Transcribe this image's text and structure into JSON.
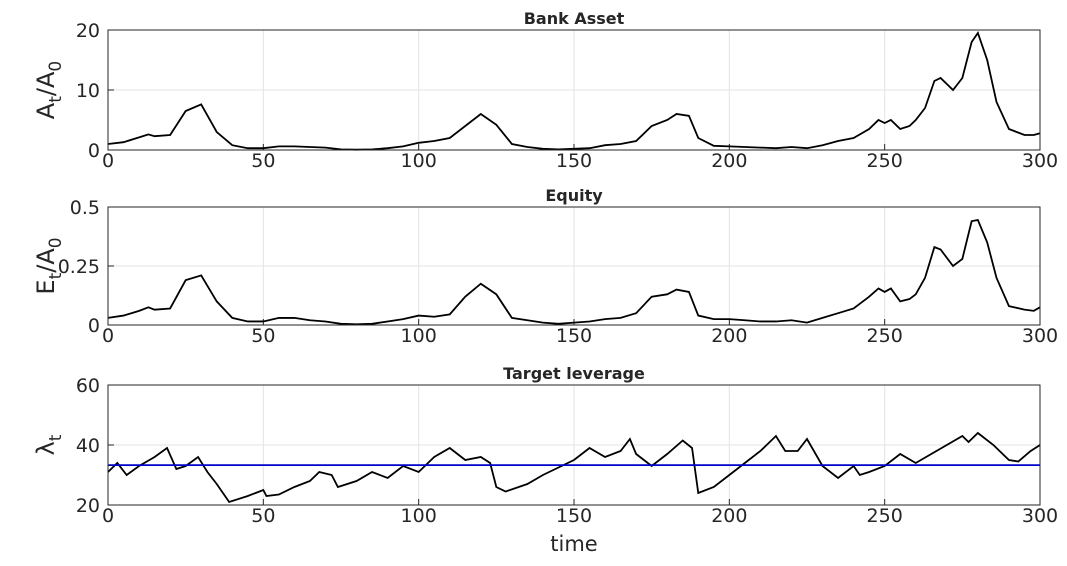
{
  "chart_data": [
    {
      "type": "line",
      "title": "Bank Asset",
      "ylabel": [
        "A",
        "t",
        "/A",
        "0"
      ],
      "xlim": [
        0,
        300
      ],
      "xticks": [
        0,
        50,
        100,
        150,
        200,
        250,
        300
      ],
      "ylim": [
        0,
        20
      ],
      "yticks": [
        0,
        10,
        20
      ],
      "grid": true,
      "series": [
        {
          "color": "#000000",
          "x": [
            0,
            5,
            10,
            13,
            15,
            20,
            25,
            30,
            35,
            40,
            45,
            50,
            55,
            60,
            65,
            70,
            75,
            80,
            85,
            90,
            95,
            100,
            105,
            110,
            115,
            120,
            125,
            130,
            135,
            140,
            145,
            150,
            155,
            160,
            165,
            170,
            175,
            180,
            183,
            187,
            190,
            195,
            200,
            205,
            210,
            215,
            220,
            225,
            230,
            235,
            240,
            245,
            248,
            250,
            252,
            255,
            258,
            260,
            263,
            266,
            268,
            272,
            275,
            278,
            280,
            283,
            286,
            290,
            295,
            298,
            300
          ],
          "values": [
            1,
            1.3,
            2.1,
            2.6,
            2.3,
            2.5,
            6.5,
            7.6,
            3,
            0.8,
            0.3,
            0.3,
            0.6,
            0.6,
            0.5,
            0.4,
            0.1,
            0.05,
            0.1,
            0.3,
            0.6,
            1.2,
            1.5,
            2,
            4,
            6,
            4.2,
            1,
            0.5,
            0.2,
            0.1,
            0.2,
            0.3,
            0.8,
            1,
            1.5,
            4,
            5,
            6,
            5.7,
            2,
            0.7,
            0.6,
            0.5,
            0.4,
            0.3,
            0.5,
            0.3,
            0.8,
            1.5,
            2,
            3.5,
            5,
            4.5,
            5,
            3.5,
            4,
            5,
            7,
            11.5,
            12,
            10,
            12,
            18,
            19.5,
            15,
            8,
            3.5,
            2.5,
            2.5,
            2.8
          ]
        }
      ]
    },
    {
      "type": "line",
      "title": "Equity",
      "ylabel": [
        "E",
        "t",
        "/A",
        "0"
      ],
      "xlim": [
        0,
        300
      ],
      "xticks": [
        0,
        50,
        100,
        150,
        200,
        250,
        300
      ],
      "ylim": [
        0,
        0.5
      ],
      "yticks": [
        0,
        0.25,
        0.5
      ],
      "grid": true,
      "series": [
        {
          "color": "#000000",
          "x": [
            0,
            5,
            10,
            13,
            15,
            20,
            25,
            30,
            35,
            40,
            45,
            50,
            55,
            60,
            65,
            70,
            75,
            80,
            85,
            90,
            95,
            100,
            105,
            110,
            115,
            120,
            125,
            130,
            135,
            140,
            145,
            150,
            155,
            160,
            165,
            170,
            175,
            180,
            183,
            187,
            190,
            195,
            200,
            205,
            210,
            215,
            220,
            225,
            230,
            235,
            240,
            245,
            248,
            250,
            252,
            255,
            258,
            260,
            263,
            266,
            268,
            272,
            275,
            278,
            280,
            283,
            286,
            290,
            295,
            298,
            300
          ],
          "values": [
            0.03,
            0.04,
            0.06,
            0.075,
            0.065,
            0.07,
            0.19,
            0.21,
            0.1,
            0.03,
            0.015,
            0.015,
            0.03,
            0.03,
            0.02,
            0.015,
            0.005,
            0.003,
            0.005,
            0.015,
            0.025,
            0.04,
            0.035,
            0.045,
            0.12,
            0.175,
            0.13,
            0.03,
            0.02,
            0.01,
            0.005,
            0.01,
            0.015,
            0.025,
            0.03,
            0.05,
            0.12,
            0.13,
            0.15,
            0.14,
            0.04,
            0.025,
            0.025,
            0.02,
            0.015,
            0.015,
            0.02,
            0.01,
            0.03,
            0.05,
            0.07,
            0.12,
            0.155,
            0.14,
            0.155,
            0.1,
            0.11,
            0.13,
            0.2,
            0.33,
            0.32,
            0.25,
            0.28,
            0.44,
            0.445,
            0.35,
            0.2,
            0.08,
            0.065,
            0.06,
            0.075
          ]
        }
      ]
    },
    {
      "type": "line",
      "title": "Target leverage",
      "ylabel": [
        "λ",
        "t"
      ],
      "xlabel": "time",
      "xlim": [
        0,
        300
      ],
      "xticks": [
        0,
        50,
        100,
        150,
        200,
        250,
        300
      ],
      "ylim": [
        20,
        60
      ],
      "yticks": [
        20,
        40,
        60
      ],
      "grid": true,
      "series": [
        {
          "color": "#000000",
          "x": [
            0,
            3,
            6,
            10,
            15,
            19,
            22,
            25,
            29,
            32,
            35,
            39,
            45,
            50,
            51,
            55,
            60,
            65,
            68,
            72,
            74,
            80,
            85,
            90,
            95,
            100,
            105,
            110,
            115,
            120,
            123,
            125,
            128,
            135,
            140,
            150,
            155,
            160,
            165,
            168,
            170,
            175,
            180,
            185,
            188,
            190,
            195,
            200,
            205,
            210,
            215,
            218,
            222,
            225,
            230,
            235,
            240,
            242,
            245,
            250,
            255,
            260,
            265,
            270,
            275,
            277,
            280,
            285,
            290,
            293,
            297,
            300
          ],
          "values": [
            31,
            34,
            30,
            33,
            36,
            39,
            32,
            33,
            36,
            31,
            27,
            21,
            23,
            25,
            23,
            23.5,
            26,
            28,
            31,
            30,
            26,
            28,
            31,
            29,
            33,
            31,
            36,
            39,
            35,
            36,
            34,
            26,
            24.5,
            27,
            30,
            35,
            39,
            36,
            38,
            42,
            37,
            33,
            37,
            41.5,
            39,
            24,
            26,
            30,
            34,
            38,
            43,
            38,
            38,
            42,
            33,
            29,
            33,
            30,
            31,
            33,
            37,
            34,
            37,
            40,
            43,
            41,
            44,
            40,
            35,
            34.5,
            38,
            40
          ]
        },
        {
          "color": "#0000cc",
          "x": [
            0,
            300
          ],
          "values": [
            33.3,
            33.3
          ]
        }
      ]
    }
  ]
}
